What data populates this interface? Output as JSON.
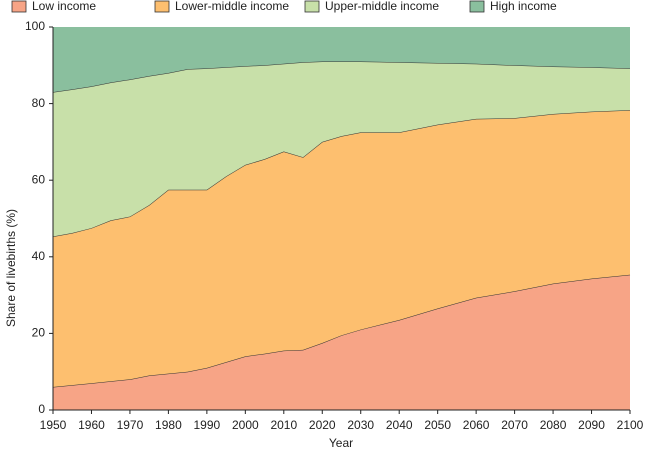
{
  "chart_data": {
    "type": "stacked-area",
    "x": [
      1950,
      1955,
      1960,
      1965,
      1970,
      1975,
      1980,
      1985,
      1990,
      1995,
      2000,
      2005,
      2010,
      2015,
      2020,
      2025,
      2030,
      2040,
      2050,
      2060,
      2070,
      2080,
      2090,
      2100
    ],
    "series": [
      {
        "name": "Low income",
        "color": "#f7a486",
        "values": [
          6,
          6.5,
          7,
          7.5,
          8,
          9,
          9.5,
          10,
          11,
          12.5,
          14,
          14.7,
          15.5,
          15.7,
          17.5,
          19.5,
          21,
          23.5,
          26.5,
          29.3,
          31,
          33,
          34.3,
          35.3
        ]
      },
      {
        "name": "Lower-middle income",
        "color": "#fdbf6f",
        "values": [
          39.3,
          39.7,
          40.5,
          42,
          42.5,
          44.5,
          48,
          47.5,
          46.5,
          48.5,
          50,
          50.8,
          52,
          50.3,
          52.5,
          52,
          51.5,
          49,
          48,
          46.7,
          45.2,
          44.3,
          43.6,
          43
        ]
      },
      {
        "name": "Upper-middle income",
        "color": "#c8e0a9",
        "values": [
          37.7,
          37.5,
          37,
          36,
          35.8,
          33.7,
          30.5,
          31.5,
          31.7,
          28.5,
          25.8,
          24.5,
          22.9,
          24.8,
          21,
          19.5,
          18.5,
          18.3,
          16.1,
          14.4,
          13.8,
          12.4,
          11.6,
          10.9
        ]
      },
      {
        "name": "High income",
        "color": "#8abf9e",
        "values": [
          17,
          16.3,
          15.5,
          14.5,
          13.7,
          12.8,
          12,
          11,
          10.8,
          10.5,
          10.2,
          10,
          9.6,
          9.2,
          9,
          9,
          9,
          9.2,
          9.4,
          9.6,
          10,
          10.3,
          10.5,
          10.8
        ]
      }
    ],
    "xlabel": "Year",
    "ylabel": "Share of livebirths (%)",
    "xlim": [
      1950,
      2100
    ],
    "xticks": [
      1950,
      1960,
      1970,
      1980,
      1990,
      2000,
      2010,
      2020,
      2030,
      2040,
      2050,
      2060,
      2070,
      2080,
      2090,
      2100
    ],
    "ylim": [
      0,
      100
    ],
    "yticks": [
      0,
      20,
      40,
      60,
      80,
      100
    ]
  }
}
